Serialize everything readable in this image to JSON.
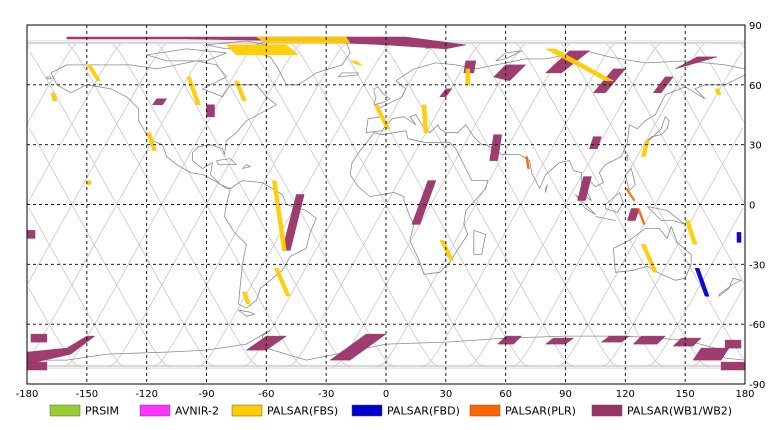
{
  "map": {
    "lon_range": [
      -180,
      180
    ],
    "lat_range": [
      -90,
      90
    ],
    "x_ticks": [
      "-180",
      "-150",
      "-120",
      "-90",
      "-60",
      "-30",
      "0",
      "30",
      "60",
      "90",
      "120",
      "150",
      "180"
    ],
    "y_ticks": [
      "90",
      "60",
      "30",
      "0",
      "-30",
      "-60",
      "-90"
    ],
    "grid": "dashed",
    "colors": {
      "land_outline": "#8c8c8c",
      "orbit_track": "#c8c8c8",
      "grid": "#000000"
    }
  },
  "legend": {
    "items": [
      {
        "label": "PRSIM",
        "color": "#99cc33"
      },
      {
        "label": "AVNIR-2",
        "color": "#ff33ff"
      },
      {
        "label": "PALSAR(FBS)",
        "color": "#ffcc00"
      },
      {
        "label": "PALSAR(FBD)",
        "color": "#0000cc"
      },
      {
        "label": "PALSAR(PLR)",
        "color": "#ff6600"
      },
      {
        "label": "PALSAR(WB1/WB2)",
        "color": "#993366"
      }
    ]
  },
  "swaths": {
    "wb": [
      [
        [
          -160,
          84
        ],
        [
          -110,
          84
        ],
        [
          -60,
          84
        ],
        [
          -20,
          84
        ],
        [
          10,
          84
        ],
        [
          40,
          80
        ],
        [
          30,
          78
        ],
        [
          0,
          80
        ],
        [
          -40,
          82
        ],
        [
          -100,
          83
        ],
        [
          -160,
          83
        ]
      ],
      [
        [
          40,
          72
        ],
        [
          45,
          72
        ],
        [
          44,
          66
        ],
        [
          39,
          66
        ]
      ],
      [
        [
          60,
          70
        ],
        [
          70,
          70
        ],
        [
          62,
          62
        ],
        [
          54,
          64
        ]
      ],
      [
        [
          92,
          77
        ],
        [
          102,
          77
        ],
        [
          88,
          66
        ],
        [
          80,
          66
        ]
      ],
      [
        [
          114,
          68
        ],
        [
          120,
          68
        ],
        [
          110,
          56
        ],
        [
          104,
          56
        ]
      ],
      [
        [
          140,
          64
        ],
        [
          144,
          64
        ],
        [
          138,
          56
        ],
        [
          134,
          56
        ]
      ],
      [
        [
          156,
          74
        ],
        [
          166,
          74
        ],
        [
          152,
          70
        ],
        [
          145,
          68
        ]
      ],
      [
        [
          30,
          58
        ],
        [
          33,
          58
        ],
        [
          30,
          54
        ],
        [
          27,
          54
        ]
      ],
      [
        [
          -115,
          53
        ],
        [
          -110,
          53
        ],
        [
          -112,
          50
        ],
        [
          -117,
          50
        ]
      ],
      [
        [
          -90,
          50
        ],
        [
          -86,
          50
        ],
        [
          -86,
          44
        ],
        [
          -90,
          44
        ]
      ],
      [
        [
          -45,
          5
        ],
        [
          -41,
          5
        ],
        [
          -48,
          -23
        ],
        [
          -52,
          -23
        ]
      ],
      [
        [
          21,
          12
        ],
        [
          25,
          12
        ],
        [
          17,
          -10
        ],
        [
          13,
          -10
        ]
      ],
      [
        [
          54,
          35
        ],
        [
          58,
          35
        ],
        [
          56,
          22
        ],
        [
          52,
          22
        ]
      ],
      [
        [
          104,
          34
        ],
        [
          108,
          34
        ],
        [
          106,
          28
        ],
        [
          102,
          28
        ]
      ],
      [
        [
          99,
          14
        ],
        [
          103,
          14
        ],
        [
          100,
          2
        ],
        [
          96,
          2
        ]
      ],
      [
        [
          123,
          -2
        ],
        [
          127,
          -2
        ],
        [
          125,
          -8
        ],
        [
          121,
          -8
        ]
      ],
      [
        [
          -180,
          -13
        ],
        [
          -176,
          -13
        ],
        [
          -176,
          -17
        ],
        [
          -180,
          -17
        ]
      ],
      [
        [
          -178,
          -65
        ],
        [
          -170,
          -65
        ],
        [
          -170,
          -69
        ],
        [
          -178,
          -69
        ]
      ],
      [
        [
          -150,
          -66
        ],
        [
          -146,
          -66
        ],
        [
          -158,
          -75
        ],
        [
          -180,
          -80
        ],
        [
          -180,
          -74
        ],
        [
          -160,
          -72
        ]
      ],
      [
        [
          -60,
          -66
        ],
        [
          -50,
          -66
        ],
        [
          -60,
          -73
        ],
        [
          -70,
          -73
        ]
      ],
      [
        [
          -10,
          -65
        ],
        [
          0,
          -65
        ],
        [
          -18,
          -78
        ],
        [
          -28,
          -78
        ]
      ],
      [
        [
          60,
          -66
        ],
        [
          68,
          -66
        ],
        [
          64,
          -70
        ],
        [
          56,
          -70
        ]
      ],
      [
        [
          84,
          -67
        ],
        [
          94,
          -67
        ],
        [
          90,
          -70
        ],
        [
          80,
          -70
        ]
      ],
      [
        [
          112,
          -66
        ],
        [
          122,
          -66
        ],
        [
          118,
          -69
        ],
        [
          108,
          -69
        ]
      ],
      [
        [
          128,
          -66
        ],
        [
          140,
          -66
        ],
        [
          136,
          -70
        ],
        [
          124,
          -70
        ]
      ],
      [
        [
          148,
          -67
        ],
        [
          158,
          -67
        ],
        [
          154,
          -71
        ],
        [
          144,
          -71
        ]
      ],
      [
        [
          158,
          -72
        ],
        [
          172,
          -72
        ],
        [
          168,
          -78
        ],
        [
          154,
          -78
        ]
      ],
      [
        [
          168,
          -79
        ],
        [
          180,
          -79
        ],
        [
          180,
          -83
        ],
        [
          168,
          -83
        ]
      ],
      [
        [
          -180,
          -79
        ],
        [
          -170,
          -79
        ],
        [
          -170,
          -83
        ],
        [
          -180,
          -83
        ]
      ],
      [
        [
          170,
          -68
        ],
        [
          178,
          -68
        ],
        [
          178,
          -72
        ],
        [
          170,
          -72
        ]
      ]
    ],
    "fbs": [
      [
        [
          -150,
          70
        ],
        [
          -148,
          70
        ],
        [
          -143,
          62
        ],
        [
          -145,
          62
        ]
      ],
      [
        [
          -168,
          56
        ],
        [
          -166,
          56
        ],
        [
          -165,
          52
        ],
        [
          -167,
          52
        ]
      ],
      [
        [
          -120,
          36
        ],
        [
          -118,
          36
        ],
        [
          -115,
          27
        ],
        [
          -117,
          27
        ]
      ],
      [
        [
          -100,
          64
        ],
        [
          -98,
          64
        ],
        [
          -93,
          50
        ],
        [
          -95,
          50
        ]
      ],
      [
        [
          -76,
          62
        ],
        [
          -74,
          62
        ],
        [
          -70,
          52
        ],
        [
          -72,
          52
        ]
      ],
      [
        [
          -57,
          12
        ],
        [
          -55,
          12
        ],
        [
          -50,
          -23
        ],
        [
          -52,
          -23
        ]
      ],
      [
        [
          -56,
          -32
        ],
        [
          -54,
          -32
        ],
        [
          -48,
          -46
        ],
        [
          -50,
          -46
        ]
      ],
      [
        [
          -72,
          -44
        ],
        [
          -70,
          -44
        ],
        [
          -68,
          -50
        ],
        [
          -70,
          -50
        ]
      ],
      [
        [
          -150,
          12
        ],
        [
          -148,
          12
        ],
        [
          -148,
          10
        ],
        [
          -150,
          10
        ]
      ],
      [
        [
          -18,
          72
        ],
        [
          -15,
          72
        ],
        [
          -12,
          70
        ],
        [
          -14,
          70
        ]
      ],
      [
        [
          -6,
          50
        ],
        [
          -4,
          50
        ],
        [
          2,
          38
        ],
        [
          0,
          38
        ]
      ],
      [
        [
          18,
          50
        ],
        [
          20,
          50
        ],
        [
          21,
          36
        ],
        [
          19,
          36
        ]
      ],
      [
        [
          40,
          68
        ],
        [
          42,
          68
        ],
        [
          42,
          60
        ],
        [
          40,
          60
        ]
      ],
      [
        [
          27,
          -18
        ],
        [
          29,
          -18
        ],
        [
          34,
          -28
        ],
        [
          32,
          -28
        ]
      ],
      [
        [
          80,
          78
        ],
        [
          85,
          78
        ],
        [
          114,
          62
        ],
        [
          110,
          62
        ]
      ],
      [
        [
          -65,
          84
        ],
        [
          -20,
          84
        ],
        [
          -18,
          81
        ],
        [
          -60,
          81
        ]
      ],
      [
        [
          -80,
          80
        ],
        [
          -50,
          80
        ],
        [
          -44,
          75
        ],
        [
          -75,
          75
        ]
      ],
      [
        [
          130,
          32
        ],
        [
          132,
          32
        ],
        [
          130,
          24
        ],
        [
          128,
          24
        ]
      ],
      [
        [
          150,
          -8
        ],
        [
          152,
          -8
        ],
        [
          156,
          -20
        ],
        [
          154,
          -20
        ]
      ],
      [
        [
          128,
          -20
        ],
        [
          130,
          -20
        ],
        [
          136,
          -34
        ],
        [
          134,
          -34
        ]
      ],
      [
        [
          165,
          58
        ],
        [
          167,
          58
        ],
        [
          168,
          55
        ],
        [
          166,
          55
        ]
      ]
    ],
    "fbd": [
      [
        [
          155,
          -32
        ],
        [
          157,
          -32
        ],
        [
          162,
          -46
        ],
        [
          160,
          -46
        ]
      ],
      [
        [
          176,
          -14
        ],
        [
          178,
          -14
        ],
        [
          178,
          -19
        ],
        [
          176,
          -19
        ]
      ]
    ],
    "plr": [
      [
        [
          70,
          24
        ],
        [
          71,
          24
        ],
        [
          72,
          18
        ],
        [
          71,
          18
        ]
      ],
      [
        [
          120,
          8
        ],
        [
          121,
          8
        ],
        [
          125,
          2
        ],
        [
          124,
          2
        ]
      ],
      [
        [
          126,
          -2
        ],
        [
          127,
          -2
        ],
        [
          130,
          -10
        ],
        [
          129,
          -10
        ]
      ]
    ]
  }
}
